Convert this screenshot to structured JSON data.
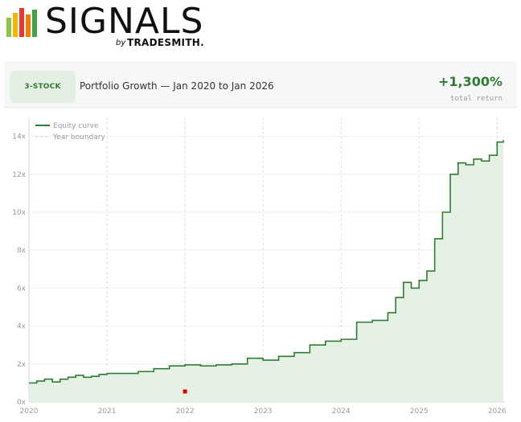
{
  "logo": {
    "word": "SIGNALS",
    "by": "by",
    "brand": "TRADESMITH."
  },
  "header": {
    "badge": "3-STOCK",
    "title": "Portfolio Growth — Jan 2020 to Jan 2026",
    "return_value": "+1,300%",
    "return_label": "total return"
  },
  "colors": {
    "line": "#2e7d32",
    "fill": "#e6f1e6",
    "accent": "#2f7d32",
    "marker": "#e00000"
  },
  "chart_data": {
    "type": "line",
    "series": [
      {
        "name": "Equity curve",
        "x": [
          2020.0,
          2020.1,
          2020.2,
          2020.3,
          2020.4,
          2020.5,
          2020.6,
          2020.7,
          2020.8,
          2020.9,
          2021.0,
          2021.2,
          2021.4,
          2021.6,
          2021.8,
          2022.0,
          2022.2,
          2022.4,
          2022.6,
          2022.8,
          2023.0,
          2023.2,
          2023.4,
          2023.6,
          2023.8,
          2024.0,
          2024.2,
          2024.4,
          2024.6,
          2024.7,
          2024.8,
          2024.9,
          2025.0,
          2025.1,
          2025.2,
          2025.3,
          2025.4,
          2025.5,
          2025.6,
          2025.7,
          2025.8,
          2025.9,
          2026.0,
          2026.08
        ],
        "y": [
          1.0,
          1.1,
          1.2,
          1.05,
          1.2,
          1.3,
          1.4,
          1.3,
          1.35,
          1.45,
          1.5,
          1.5,
          1.6,
          1.75,
          1.9,
          1.95,
          1.9,
          1.95,
          2.0,
          2.3,
          2.2,
          2.4,
          2.6,
          3.0,
          3.2,
          3.3,
          4.2,
          4.3,
          4.7,
          5.5,
          6.3,
          6.0,
          6.4,
          6.9,
          8.6,
          10.0,
          12.0,
          12.6,
          12.5,
          12.8,
          12.7,
          13.0,
          13.7,
          13.8
        ]
      },
      {
        "name": "Year boundary",
        "x": [
          2020,
          2021,
          2022,
          2023,
          2024,
          2025,
          2026
        ]
      }
    ],
    "marker": {
      "x": 2022.0,
      "y": 0.55
    },
    "x_ticks": [
      "2020",
      "2021",
      "2022",
      "2023",
      "2024",
      "2025",
      "2026"
    ],
    "y_ticks": [
      "0x",
      "2x",
      "4x",
      "6x",
      "8x",
      "10x",
      "12x",
      "14x"
    ],
    "xlim": [
      2020.0,
      2026.1
    ],
    "ylim": [
      0,
      15
    ],
    "grid": true,
    "legend_position": "top-left"
  }
}
